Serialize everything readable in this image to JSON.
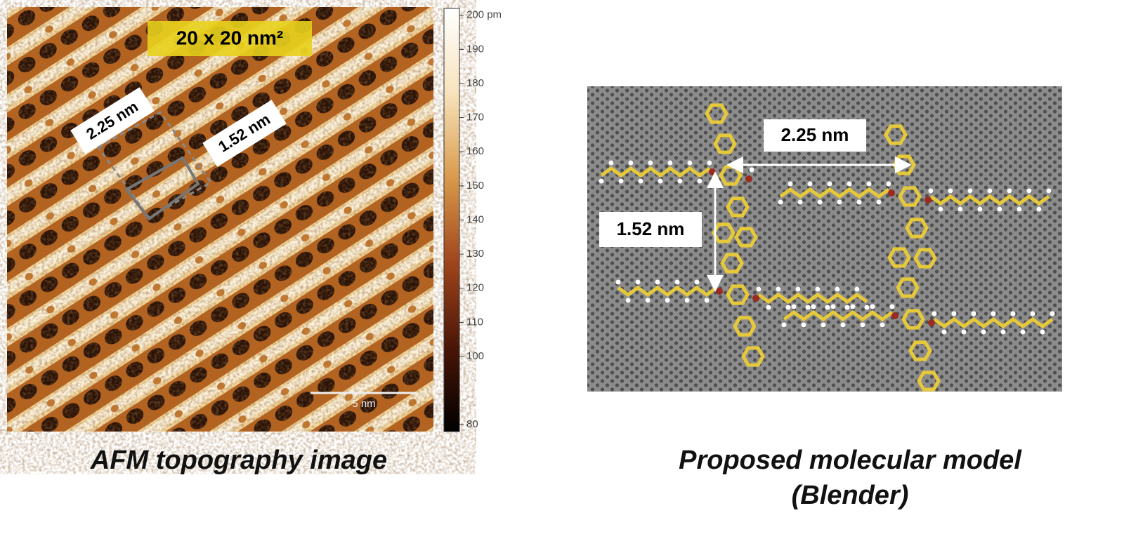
{
  "afm_panel": {
    "size_label": "20 x 20 nm²",
    "period_a_label": "2.25 nm",
    "period_b_label": "1.52 nm",
    "scale_bar_label": "5 nm",
    "colorbar": {
      "lim": [
        78,
        202
      ],
      "ticks": [
        {
          "value": 200,
          "label": "200 pm"
        },
        190,
        180,
        170,
        160,
        150,
        140,
        130,
        120,
        110,
        100,
        80
      ]
    },
    "caption": "AFM topography image"
  },
  "model_panel": {
    "period_a_label": "2.25 nm",
    "period_b_label": "1.52 nm",
    "caption": [
      "Proposed molecular model",
      "(Blender)"
    ]
  }
}
